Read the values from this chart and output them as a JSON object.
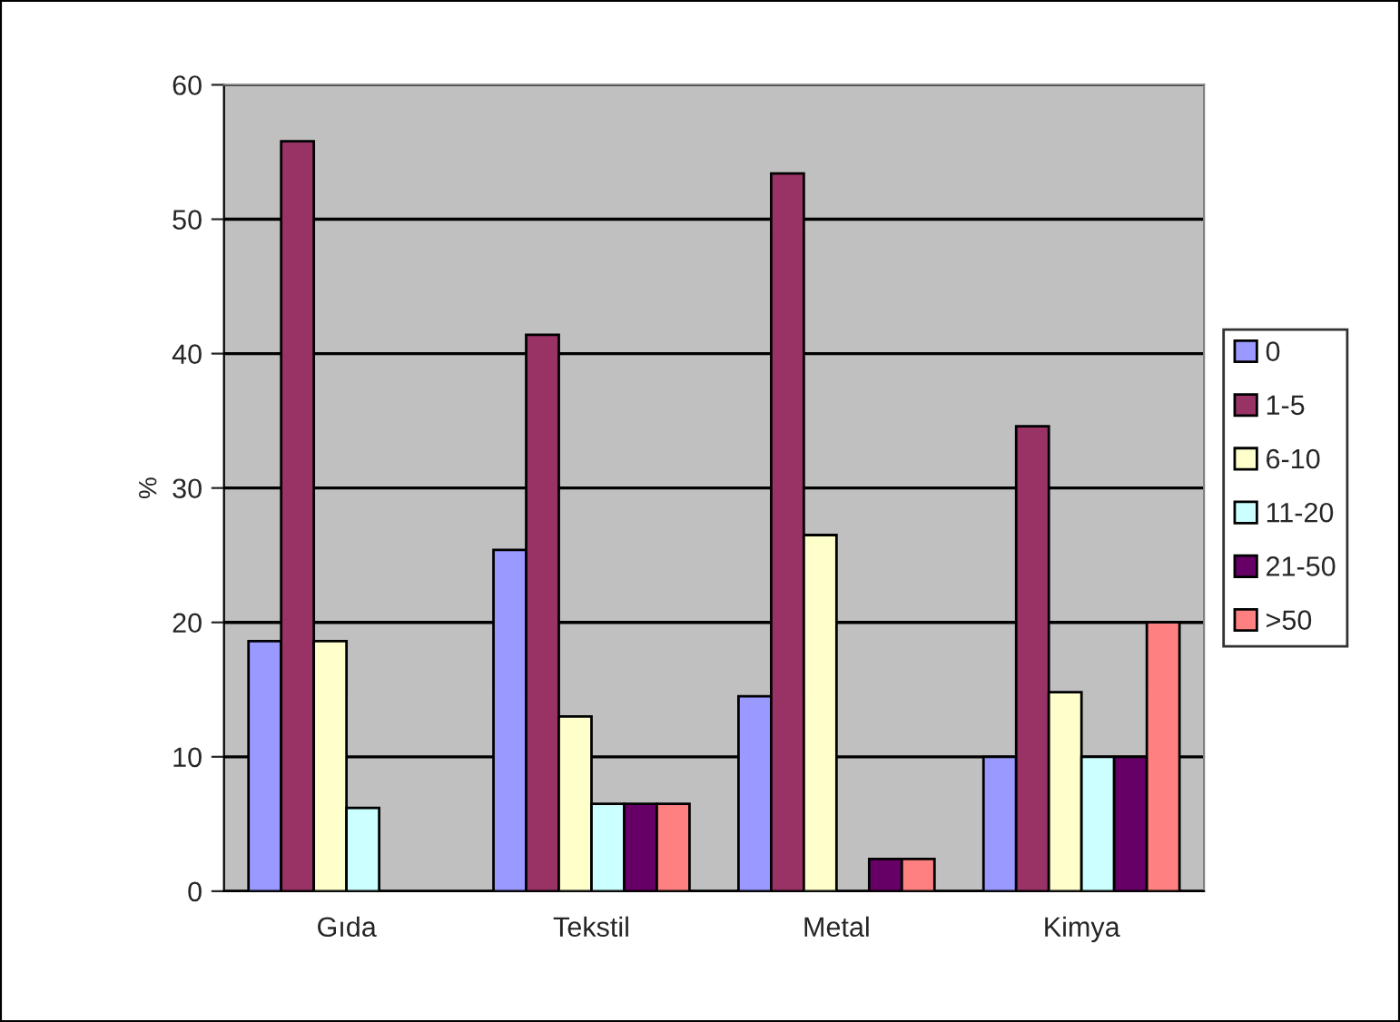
{
  "chart_data": {
    "type": "bar",
    "ylabel": "%",
    "categories": [
      "Gıda",
      "Tekstil",
      "Metal",
      "Kimya"
    ],
    "series": [
      {
        "name": "0",
        "color": "#9999ff",
        "values": [
          18.6,
          25.4,
          14.5,
          10
        ]
      },
      {
        "name": "1-5",
        "color": "#993366",
        "values": [
          55.8,
          41.4,
          53.4,
          34.6
        ]
      },
      {
        "name": "6-10",
        "color": "#ffffcc",
        "values": [
          18.6,
          13.0,
          26.5,
          14.8
        ]
      },
      {
        "name": "11-20",
        "color": "#ccffff",
        "values": [
          6.2,
          6.5,
          0,
          10
        ]
      },
      {
        "name": "21-50",
        "color": "#660066",
        "values": [
          0,
          6.5,
          2.4,
          10
        ]
      },
      {
        "name": ">50",
        "color": "#ff8080",
        "values": [
          0,
          6.5,
          2.4,
          20
        ]
      }
    ],
    "ylim": [
      0,
      60
    ],
    "yticks": [
      0,
      10,
      20,
      30,
      40,
      50,
      60
    ],
    "grid": "y",
    "legend": "right"
  }
}
